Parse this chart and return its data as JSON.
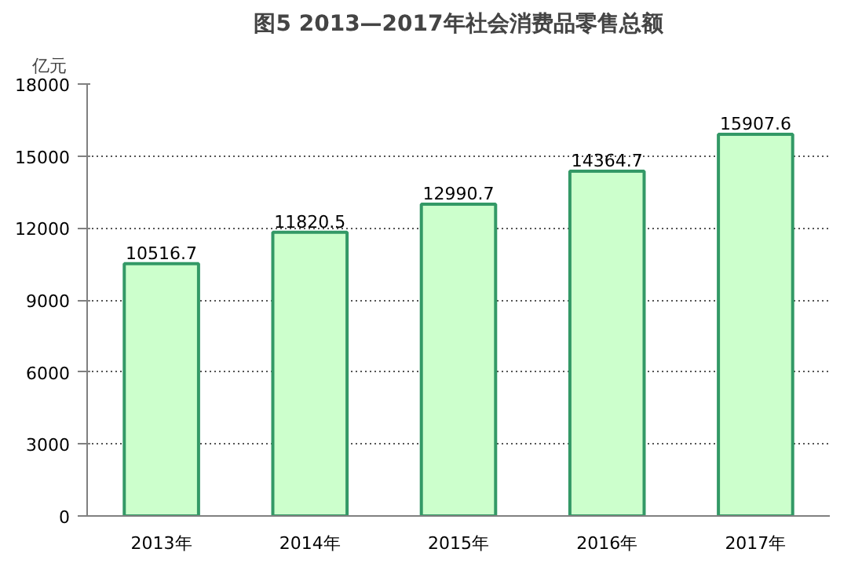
{
  "chart_data": {
    "type": "bar",
    "title": "图5 2013—2017年社会消费品零售总额",
    "ylabel": "亿元",
    "categories": [
      "2013年",
      "2014年",
      "2015年",
      "2016年",
      "2017年"
    ],
    "values": [
      10516.7,
      11820.5,
      12990.7,
      14364.7,
      15907.6
    ],
    "color": "#ccffcc",
    "ylim": [
      0,
      18000
    ],
    "yticks": [
      0,
      3000,
      6000,
      9000,
      12000,
      15000,
      18000
    ],
    "grid": "y",
    "data_labels": true
  }
}
